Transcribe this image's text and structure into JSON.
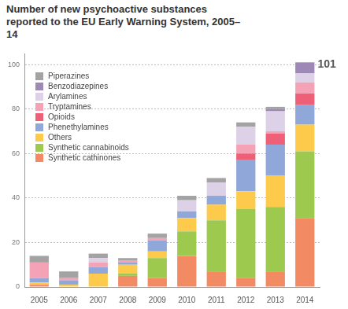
{
  "chart_data": {
    "type": "bar",
    "title": "Number of new psychoactive substances reported to the EU Early Warning System, 2005–14",
    "categories": [
      "2005",
      "2006",
      "2007",
      "2008",
      "2009",
      "2010",
      "2011",
      "2012",
      "2013",
      "2014"
    ],
    "series": [
      {
        "name": "Synthetic cathinones",
        "color": "#f28b64",
        "values": [
          1,
          0,
          0,
          5,
          4,
          14,
          7,
          4,
          7,
          31
        ]
      },
      {
        "name": "Synthetic cannabinoids",
        "color": "#9dc94f",
        "values": [
          0,
          0,
          0,
          1,
          9,
          11,
          23,
          31,
          29,
          30
        ]
      },
      {
        "name": "Others",
        "color": "#fdca4c",
        "values": [
          1,
          1,
          6,
          4,
          3,
          6,
          7,
          8,
          14,
          12
        ]
      },
      {
        "name": "Phenethylamines",
        "color": "#8fa7d9",
        "values": [
          2,
          2,
          3,
          1,
          5,
          3,
          4,
          14,
          14,
          9
        ]
      },
      {
        "name": "Opioids",
        "color": "#ee5f78",
        "values": [
          0,
          0,
          0,
          0,
          0,
          0,
          0,
          3,
          5,
          5
        ]
      },
      {
        "name": "Tryptamines",
        "color": "#f4a3b6",
        "values": [
          7,
          1,
          2,
          1,
          1,
          0,
          0,
          4,
          1,
          5
        ]
      },
      {
        "name": "Arylamines",
        "color": "#ddd1e7",
        "values": [
          0,
          0,
          2,
          0,
          0,
          5,
          6,
          8,
          9,
          4
        ]
      },
      {
        "name": "Benzodiazepines",
        "color": "#9e88b5",
        "values": [
          0,
          0,
          0,
          0,
          0,
          0,
          0,
          0,
          1,
          5
        ]
      },
      {
        "name": "Piperazines",
        "color": "#a3a3a3",
        "values": [
          3,
          3,
          2,
          1,
          2,
          2,
          2,
          2,
          1,
          0
        ]
      }
    ],
    "stacked": true,
    "ylim": [
      0,
      105
    ],
    "yticks": [
      0,
      20,
      40,
      60,
      80,
      100
    ],
    "grid": true,
    "legend": "upper left",
    "annotations": [
      {
        "x": "2014",
        "y": 101,
        "text": "101"
      }
    ]
  }
}
